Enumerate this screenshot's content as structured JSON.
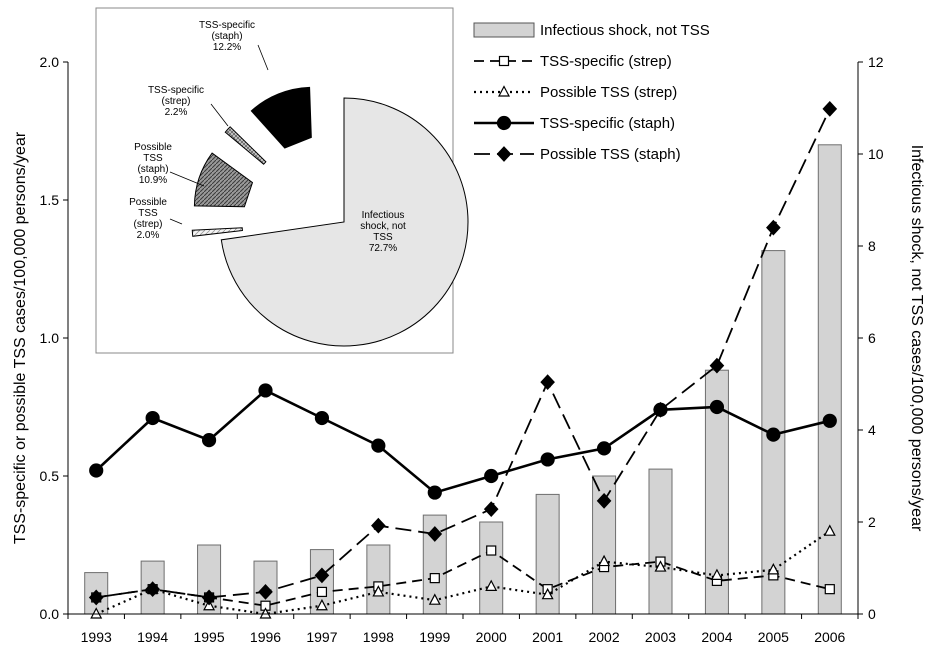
{
  "chart_data": [
    {
      "type": "bar+line",
      "title": "",
      "categories": [
        "1993",
        "1994",
        "1995",
        "1996",
        "1997",
        "1998",
        "1999",
        "2000",
        "2001",
        "2002",
        "2003",
        "2004",
        "2005",
        "2006"
      ],
      "ylabel_left": "TSS-specific or possible TSS cases/100,000 persons/year",
      "ylabel_right": "Infectious shock, not TSS cases/100,000 persons/year",
      "ylim_left": [
        0,
        2.0
      ],
      "ylim_right": [
        0,
        12
      ],
      "yticks_left": [
        "0.0",
        "0.5",
        "1.0",
        "1.5",
        "2.0"
      ],
      "yticks_right": [
        "0",
        "2",
        "4",
        "6",
        "8",
        "10",
        "12"
      ],
      "grid": false,
      "legend_position": "top-right",
      "series": [
        {
          "key": "infshock",
          "name": "Infectious shock, not TSS",
          "kind": "bar",
          "axis": "right",
          "color": "#d3d3d3",
          "values": [
            0.9,
            1.15,
            1.5,
            1.15,
            1.4,
            1.5,
            2.15,
            2.0,
            2.6,
            3.0,
            3.15,
            5.3,
            7.9,
            10.2
          ]
        },
        {
          "key": "strep_specific",
          "name": "TSS-specific (strep)",
          "kind": "line",
          "axis": "left",
          "dash": "dashed",
          "marker": "square",
          "values": [
            0.06,
            0.09,
            0.06,
            0.03,
            0.08,
            0.1,
            0.13,
            0.23,
            0.09,
            0.17,
            0.19,
            0.12,
            0.14,
            0.09
          ]
        },
        {
          "key": "strep_possible",
          "name": "Possible TSS (strep)",
          "kind": "line",
          "axis": "left",
          "dash": "dotted",
          "marker": "triangle",
          "values": [
            0.0,
            0.09,
            0.03,
            0.0,
            0.03,
            0.08,
            0.05,
            0.1,
            0.07,
            0.19,
            0.17,
            0.14,
            0.16,
            0.3
          ]
        },
        {
          "key": "staph_specific",
          "name": "TSS-specific (staph)",
          "kind": "line",
          "axis": "left",
          "dash": "solid",
          "marker": "circle",
          "values": [
            0.52,
            0.71,
            0.63,
            0.81,
            0.71,
            0.61,
            0.44,
            0.5,
            0.56,
            0.6,
            0.74,
            0.75,
            0.65,
            0.7
          ]
        },
        {
          "key": "staph_possible",
          "name": "Possible TSS (staph)",
          "kind": "line",
          "axis": "left",
          "dash": "longdash",
          "marker": "diamond",
          "values": [
            0.06,
            0.09,
            0.06,
            0.08,
            0.14,
            0.32,
            0.29,
            0.38,
            0.84,
            0.41,
            0.74,
            0.9,
            1.4,
            1.83
          ]
        }
      ]
    },
    {
      "type": "pie",
      "title": "",
      "slices": [
        {
          "key": "infshock",
          "label_lines": [
            "Infectious",
            "shock, not",
            "TSS",
            "72.7%"
          ],
          "value": 72.7,
          "color": "#e6e6e6"
        },
        {
          "key": "possible_strep",
          "label_lines": [
            "Possible",
            "TSS",
            "(strep)",
            "2.0%"
          ],
          "value": 2.0,
          "color": "#f2f2f2"
        },
        {
          "key": "possible_staph",
          "label_lines": [
            "Possible",
            "TSS",
            "(staph)",
            "10.9%"
          ],
          "value": 10.9,
          "color": "#8c8c8c"
        },
        {
          "key": "specific_strep",
          "label_lines": [
            "TSS-specific",
            "(strep)",
            "2.2%"
          ],
          "value": 2.2,
          "color": "#bdbdbd"
        },
        {
          "key": "specific_staph",
          "label_lines": [
            "TSS-specific",
            "(staph)",
            "12.2%"
          ],
          "value": 12.2,
          "color": "#000000"
        }
      ]
    }
  ]
}
